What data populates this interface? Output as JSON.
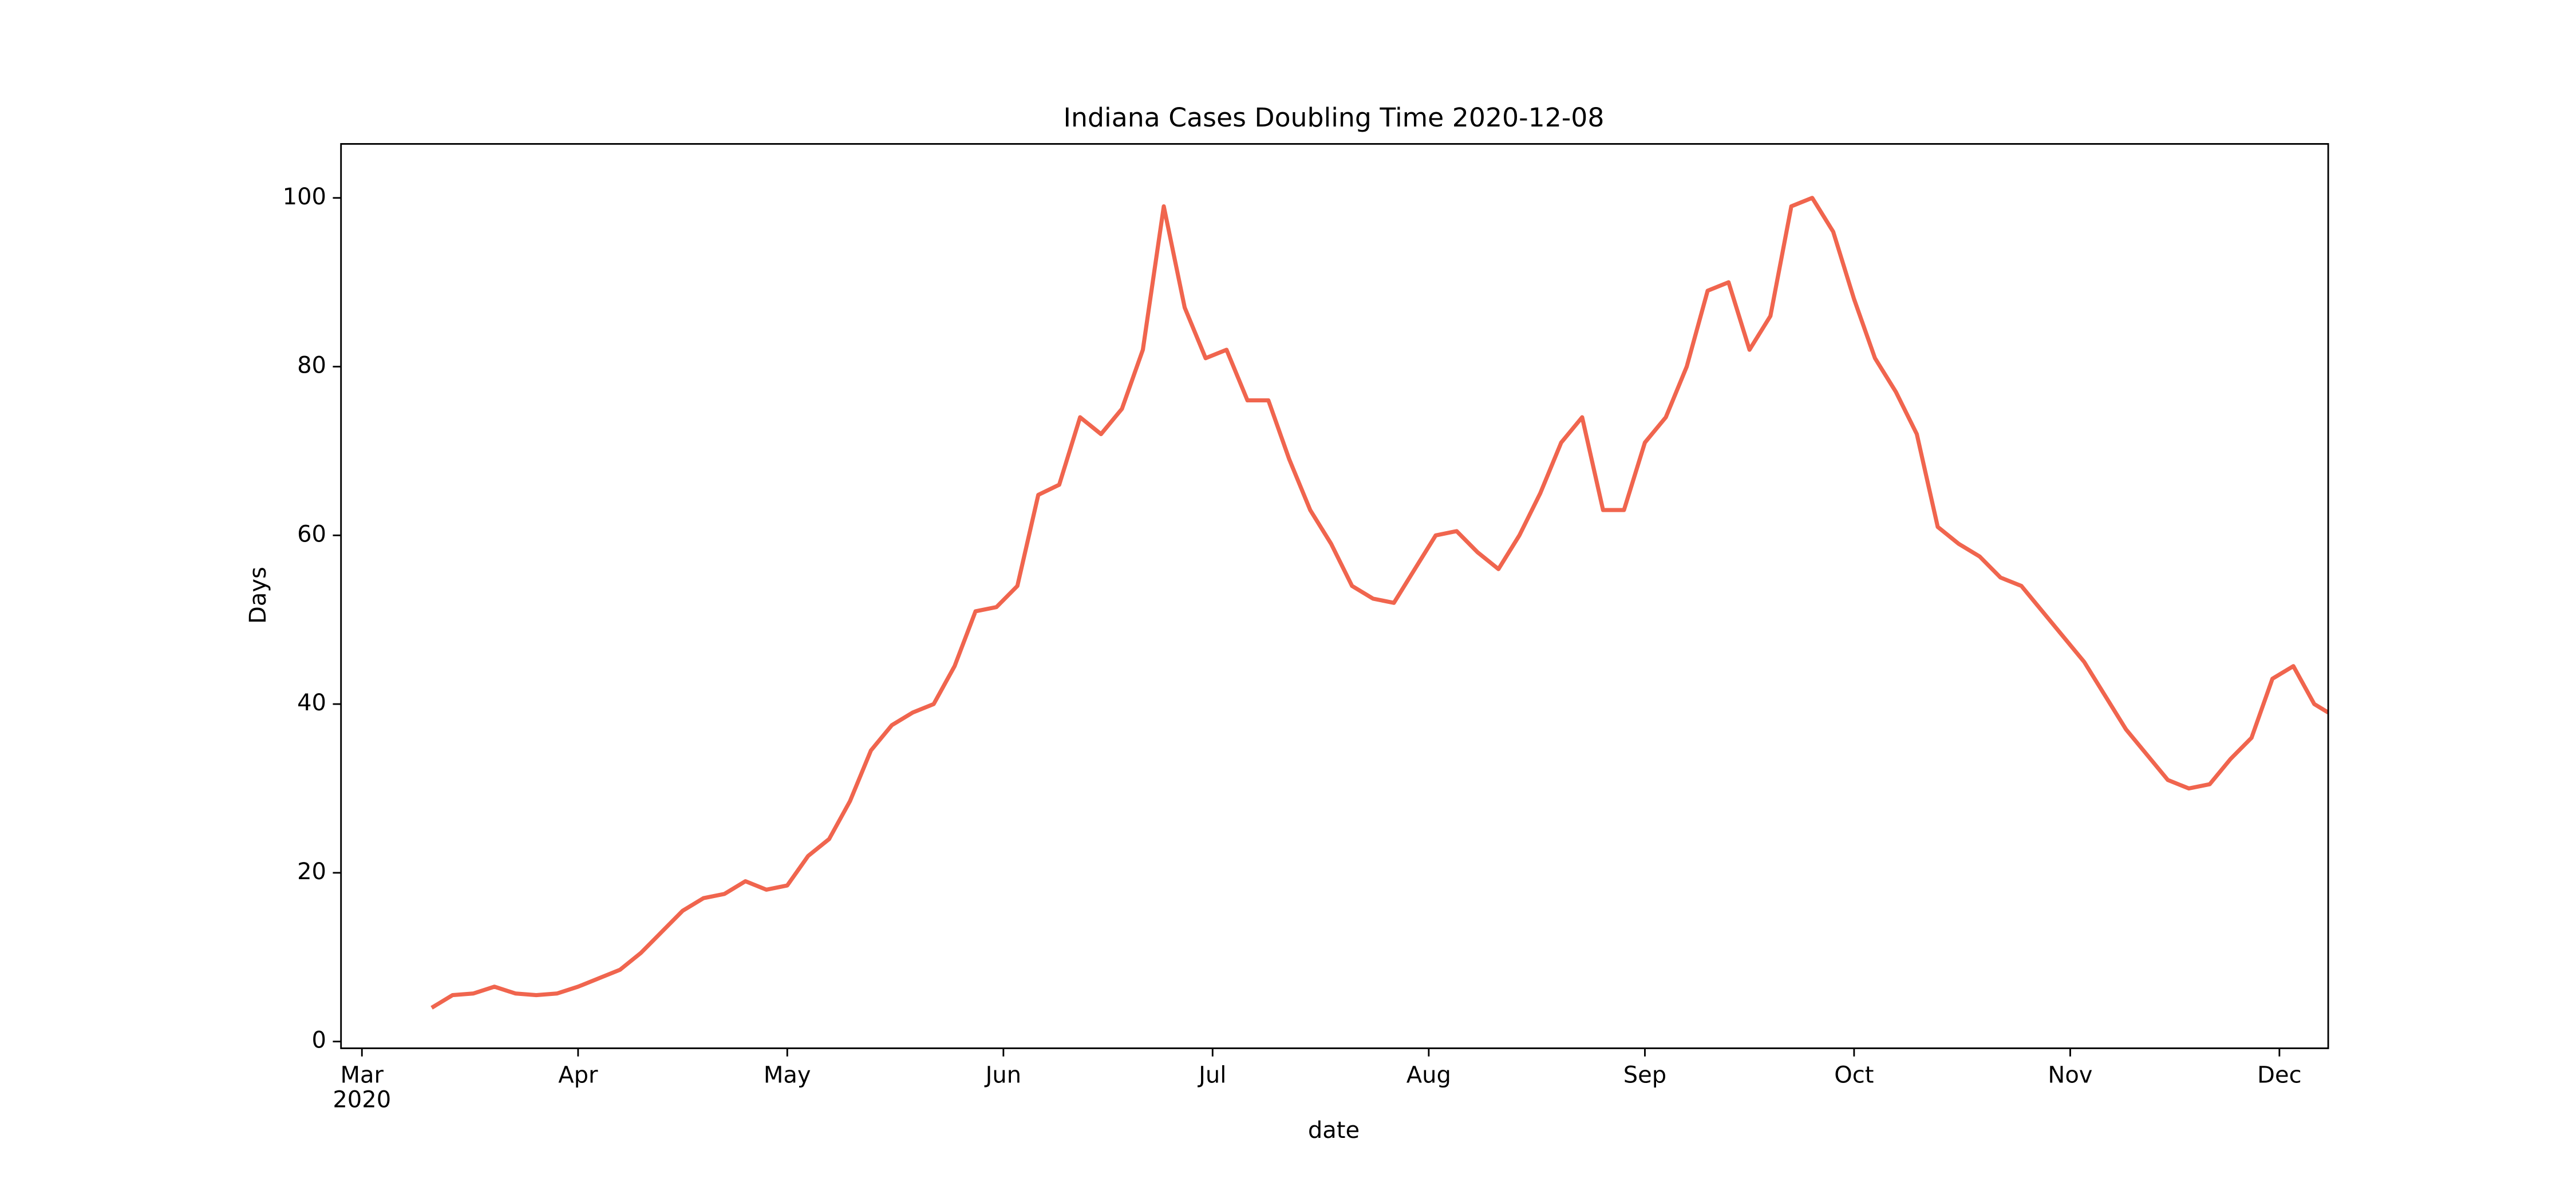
{
  "chart_data": {
    "type": "line",
    "title": "Indiana Cases Doubling Time 2020-12-08",
    "x_label": "date",
    "y_label": "Days",
    "xlim": [
      "2020-02-27",
      "2020-12-08"
    ],
    "ylim": [
      -0.8,
      106.4
    ],
    "yticks": [
      0,
      20,
      40,
      60,
      80,
      100
    ],
    "xticks": [
      {
        "value": "2020-03-01",
        "label": "Mar\n2020"
      },
      {
        "value": "2020-04-01",
        "label": "Apr"
      },
      {
        "value": "2020-05-01",
        "label": "May"
      },
      {
        "value": "2020-06-01",
        "label": "Jun"
      },
      {
        "value": "2020-07-01",
        "label": "Jul"
      },
      {
        "value": "2020-08-01",
        "label": "Aug"
      },
      {
        "value": "2020-09-01",
        "label": "Sep"
      },
      {
        "value": "2020-10-01",
        "label": "Oct"
      },
      {
        "value": "2020-11-01",
        "label": "Nov"
      },
      {
        "value": "2020-12-01",
        "label": "Dec"
      }
    ],
    "grid": false,
    "x": [
      "2020-03-11",
      "2020-03-14",
      "2020-03-17",
      "2020-03-20",
      "2020-03-23",
      "2020-03-26",
      "2020-03-29",
      "2020-04-01",
      "2020-04-04",
      "2020-04-07",
      "2020-04-10",
      "2020-04-13",
      "2020-04-16",
      "2020-04-19",
      "2020-04-22",
      "2020-04-25",
      "2020-04-28",
      "2020-05-01",
      "2020-05-04",
      "2020-05-07",
      "2020-05-10",
      "2020-05-13",
      "2020-05-16",
      "2020-05-19",
      "2020-05-22",
      "2020-05-25",
      "2020-05-28",
      "2020-05-31",
      "2020-06-03",
      "2020-06-06",
      "2020-06-09",
      "2020-06-12",
      "2020-06-15",
      "2020-06-18",
      "2020-06-21",
      "2020-06-24",
      "2020-06-27",
      "2020-06-30",
      "2020-07-03",
      "2020-07-06",
      "2020-07-09",
      "2020-07-12",
      "2020-07-15",
      "2020-07-18",
      "2020-07-21",
      "2020-07-24",
      "2020-07-27",
      "2020-07-30",
      "2020-08-02",
      "2020-08-05",
      "2020-08-08",
      "2020-08-11",
      "2020-08-14",
      "2020-08-17",
      "2020-08-20",
      "2020-08-23",
      "2020-08-26",
      "2020-08-29",
      "2020-09-01",
      "2020-09-04",
      "2020-09-07",
      "2020-09-10",
      "2020-09-13",
      "2020-09-16",
      "2020-09-19",
      "2020-09-22",
      "2020-09-25",
      "2020-09-28",
      "2020-10-01",
      "2020-10-04",
      "2020-10-07",
      "2020-10-10",
      "2020-10-13",
      "2020-10-16",
      "2020-10-19",
      "2020-10-22",
      "2020-10-25",
      "2020-10-28",
      "2020-10-31",
      "2020-11-03",
      "2020-11-06",
      "2020-11-09",
      "2020-11-12",
      "2020-11-15",
      "2020-11-18",
      "2020-11-21",
      "2020-11-24",
      "2020-11-27",
      "2020-11-30",
      "2020-12-03",
      "2020-12-06",
      "2020-12-08"
    ],
    "series": [
      {
        "name": "Doubling Time",
        "color": "#f0654e",
        "values": [
          4,
          5.5,
          5.7,
          6.5,
          5.7,
          5.5,
          5.7,
          6.5,
          7.5,
          8.5,
          10.5,
          13,
          15.5,
          17,
          17.5,
          19,
          18,
          18.5,
          22,
          24,
          28.5,
          34.5,
          37.5,
          39,
          40,
          44.5,
          51,
          51.5,
          54,
          64.8,
          66,
          74,
          72,
          75,
          82,
          99,
          87,
          81,
          82,
          76,
          76,
          69,
          63,
          59,
          54,
          52.5,
          52,
          56,
          60,
          60.5,
          58,
          56,
          60,
          65,
          71,
          74,
          63,
          63,
          71,
          74,
          80,
          89,
          90,
          82,
          86,
          99,
          100,
          96,
          88,
          81,
          77,
          72,
          61,
          59,
          57.5,
          55,
          54,
          51,
          48,
          45,
          41,
          37,
          34,
          31,
          30,
          30.5,
          33.5,
          36,
          43,
          44.5,
          40,
          39
        ]
      }
    ]
  }
}
